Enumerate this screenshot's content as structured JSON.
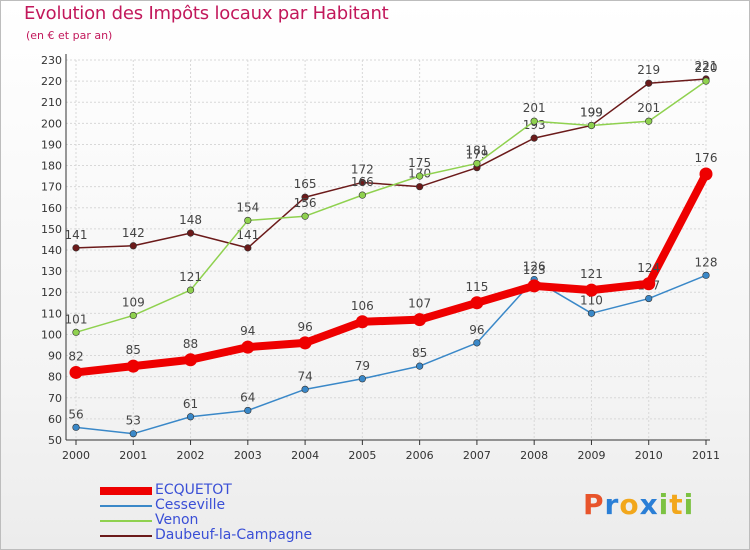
{
  "header": {
    "title": "Evolution des Impôts locaux par Habitant",
    "subtitle": "(en € et par an)"
  },
  "brand": {
    "text": "Proxiti",
    "letters": [
      "P",
      "r",
      "o",
      "x",
      "i",
      "t",
      "i"
    ],
    "colors": [
      "#e8542b",
      "#2b7fd6",
      "#f2a71b",
      "#2b7fd6",
      "#7cc242",
      "#f2a71b",
      "#7cc242"
    ]
  },
  "chart_data": {
    "type": "line",
    "x": [
      "2000",
      "2001",
      "2002",
      "2003",
      "2004",
      "2005",
      "2006",
      "2007",
      "2008",
      "2009",
      "2010",
      "2011"
    ],
    "ylim": [
      50,
      230
    ],
    "yticks": [
      50,
      60,
      70,
      80,
      90,
      100,
      110,
      120,
      130,
      140,
      150,
      160,
      170,
      180,
      190,
      200,
      210,
      220,
      230
    ],
    "grid": true,
    "legend_position": "bottom-left",
    "series": [
      {
        "name": "Daubeuf-la-Campagne",
        "color": "#6b1a1a",
        "values": [
          141,
          142,
          148,
          141,
          165,
          172,
          170,
          179,
          193,
          199,
          219,
          221
        ]
      },
      {
        "name": "Venon",
        "color": "#8fd14f",
        "values": [
          101,
          109,
          121,
          154,
          156,
          166,
          175,
          181,
          201,
          199,
          201,
          220
        ]
      },
      {
        "name": "Cesseville",
        "color": "#3a88c8",
        "values": [
          56,
          53,
          61,
          64,
          74,
          79,
          85,
          96,
          126,
          110,
          117,
          128
        ]
      },
      {
        "name": "ECQUETOT",
        "color": "#ee0000",
        "values": [
          82,
          85,
          88,
          94,
          96,
          106,
          107,
          115,
          123,
          121,
          124,
          176
        ]
      }
    ],
    "legend_order": [
      "ECQUETOT",
      "Cesseville",
      "Venon",
      "Daubeuf-la-Campagne"
    ]
  }
}
